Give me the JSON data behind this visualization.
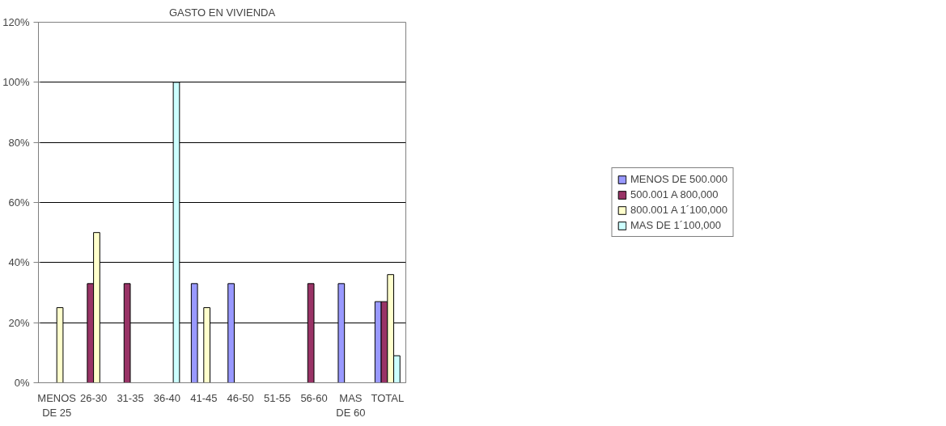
{
  "chart_data": {
    "type": "bar",
    "title": "GASTO EN VIVIENDA",
    "categories": [
      "MENOS DE 25",
      "26-30",
      "31-35",
      "36-40",
      "41-45",
      "46-50",
      "51-55",
      "56-60",
      "MAS DE 60",
      "TOTAL"
    ],
    "series": [
      {
        "name": "MENOS DE 500.000",
        "color": "#9999ff",
        "values": [
          null,
          null,
          null,
          null,
          33,
          33,
          null,
          null,
          33,
          27
        ]
      },
      {
        "name": "500.001 A 800,000",
        "color": "#993366",
        "values": [
          null,
          33,
          33,
          null,
          null,
          null,
          null,
          33,
          null,
          27
        ]
      },
      {
        "name": "800.001 A 1´100,000",
        "color": "#ffffcc",
        "values": [
          25,
          50,
          null,
          null,
          25,
          null,
          null,
          null,
          null,
          36
        ]
      },
      {
        "name": "MAS DE 1´100,000",
        "color": "#ccffff",
        "values": [
          null,
          null,
          null,
          100,
          null,
          null,
          null,
          null,
          null,
          9
        ]
      }
    ],
    "ylim": [
      0,
      120
    ],
    "yticks": [
      {
        "value": 0,
        "label": "0%"
      },
      {
        "value": 20,
        "label": "20%"
      },
      {
        "value": 40,
        "label": "40%"
      },
      {
        "value": 60,
        "label": "60%"
      },
      {
        "value": 80,
        "label": "80%"
      },
      {
        "value": 100,
        "label": "100%"
      },
      {
        "value": 120,
        "label": "120%"
      }
    ],
    "grid": "y",
    "legend": "right"
  }
}
